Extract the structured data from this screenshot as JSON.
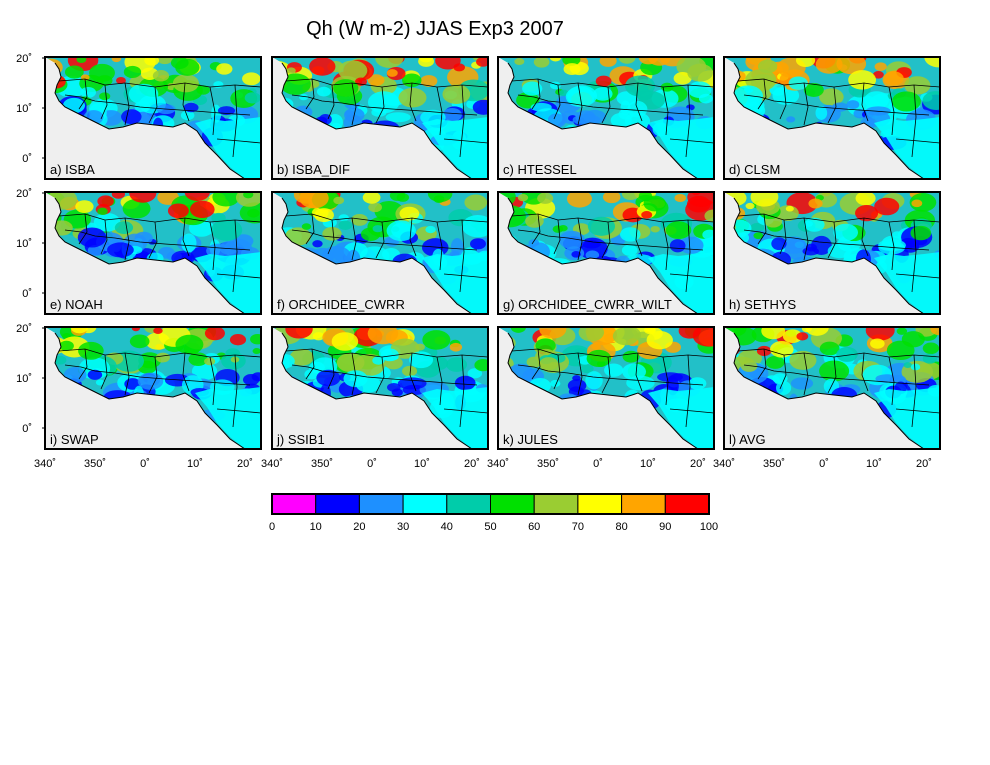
{
  "title": "Qh (W m-2) JJAS Exp3 2007",
  "panels": [
    {
      "label": "a) ISBA"
    },
    {
      "label": "b) ISBA_DIF"
    },
    {
      "label": "c) HTESSEL"
    },
    {
      "label": "d) CLSM"
    },
    {
      "label": "e) NOAH"
    },
    {
      "label": "f) ORCHIDEE_CWRR"
    },
    {
      "label": "g) ORCHIDEE_CWRR_WILT"
    },
    {
      "label": "h) SETHYS"
    },
    {
      "label": "i) SWAP"
    },
    {
      "label": "j) SSIB1"
    },
    {
      "label": "k) JULES"
    },
    {
      "label": "l) AVG"
    }
  ],
  "lat_ticks": [
    "20˚",
    "10˚",
    "0˚"
  ],
  "lon_ticks": [
    "340˚",
    "350˚",
    "0˚",
    "10˚",
    "20˚"
  ],
  "colorbar": {
    "ticks": [
      "0",
      "10",
      "20",
      "30",
      "40",
      "50",
      "60",
      "70",
      "80",
      "90",
      "100"
    ],
    "colors": [
      "#ff00ff",
      "#0000ff",
      "#1e90ff",
      "#00ffff",
      "#00ccaa",
      "#00e000",
      "#9acd32",
      "#ffff00",
      "#ffa500",
      "#ff0000"
    ]
  },
  "colors": {
    "ocean": "#efefef",
    "land_base": "#22c0c8",
    "border": "#000000"
  }
}
